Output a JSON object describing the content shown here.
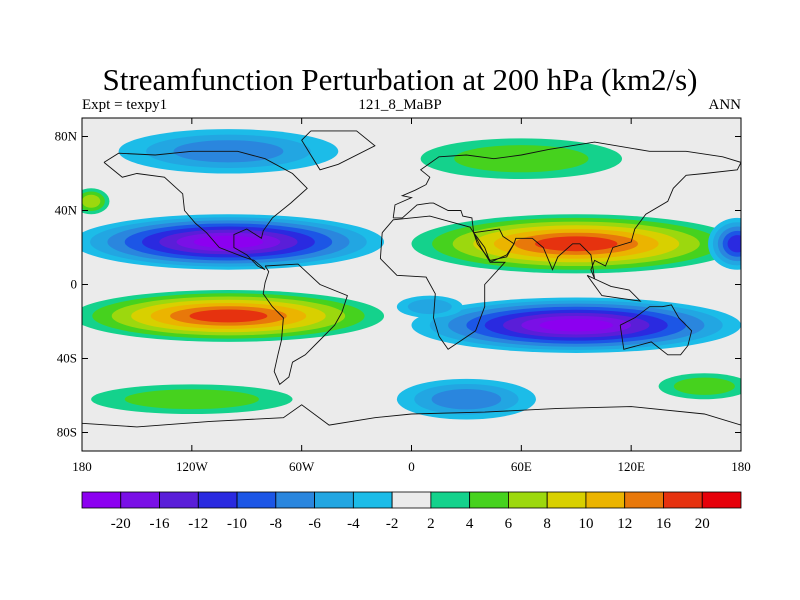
{
  "header": {
    "title": "Streamfunction Perturbation at 200 hPa (km2/s)",
    "left": "Expt = texpy1",
    "center": "121_8_MaBP",
    "right": "ANN"
  },
  "axes": {
    "lat_ticks": [
      {
        "value": 80,
        "label": "80N"
      },
      {
        "value": 40,
        "label": "40N"
      },
      {
        "value": 0,
        "label": "0"
      },
      {
        "value": -40,
        "label": "40S"
      },
      {
        "value": -80,
        "label": "80S"
      }
    ],
    "lon_ticks": [
      {
        "value": -180,
        "label": "180"
      },
      {
        "value": -120,
        "label": "120W"
      },
      {
        "value": -60,
        "label": "60W"
      },
      {
        "value": 0,
        "label": "0"
      },
      {
        "value": 60,
        "label": "60E"
      },
      {
        "value": 120,
        "label": "120E"
      },
      {
        "value": 180,
        "label": "180"
      }
    ],
    "lon_range": [
      -180,
      180
    ],
    "lat_range": [
      -90,
      90
    ]
  },
  "colorbar": {
    "labels": [
      "-20",
      "-16",
      "-12",
      "-10",
      "-8",
      "-6",
      "-4",
      "-2",
      "2",
      "4",
      "6",
      "8",
      "10",
      "12",
      "16",
      "20"
    ],
    "colors": [
      "#8c00f0",
      "#7a10e6",
      "#5a1ed8",
      "#2a2ae0",
      "#1c56e6",
      "#2a86de",
      "#22a6e2",
      "#1cbce8",
      "#ebebeb",
      "#14d28c",
      "#46d21e",
      "#9cd80e",
      "#d8d000",
      "#ebb400",
      "#e8780a",
      "#e6320f",
      "#e6000a"
    ]
  },
  "chart_data": {
    "type": "heatmap",
    "title": "Streamfunction Perturbation at 200 hPa (km2/s)",
    "levels": [
      -20,
      -16,
      -12,
      -10,
      -8,
      -6,
      -4,
      -2,
      2,
      4,
      6,
      8,
      10,
      12,
      16,
      20
    ],
    "features": [
      {
        "lon": -100,
        "lat": 23,
        "value": -22
      },
      {
        "lon": -100,
        "lat": -17,
        "value": 18
      },
      {
        "lon": 90,
        "lat": 22,
        "value": 18
      },
      {
        "lon": 90,
        "lat": -22,
        "value": -20
      },
      {
        "lon": -100,
        "lat": 72,
        "value": -7
      },
      {
        "lon": 30,
        "lat": -62,
        "value": -7
      },
      {
        "lon": 60,
        "lat": 68,
        "value": 4
      },
      {
        "lon": -120,
        "lat": -62,
        "value": 4
      },
      {
        "lon": 178,
        "lat": 22,
        "value": -10
      },
      {
        "lon": -175,
        "lat": 45,
        "value": 6
      },
      {
        "lon": 160,
        "lat": -55,
        "value": 4
      },
      {
        "lon": 10,
        "lat": -12,
        "value": -4
      }
    ]
  }
}
